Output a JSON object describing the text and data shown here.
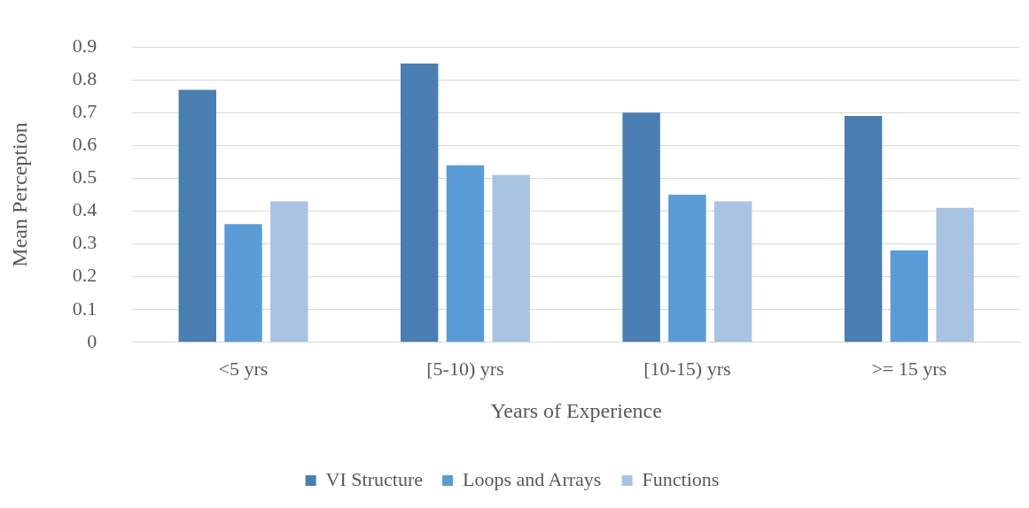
{
  "chart_data": {
    "type": "bar",
    "xlabel": "Years of Experience",
    "ylabel": "Mean Perception",
    "categories": [
      "<5 yrs",
      "[5-10) yrs",
      "[10-15) yrs",
      ">= 15 yrs"
    ],
    "series": [
      {
        "name": "VI Structure",
        "color": "#4a7eb0",
        "values": [
          0.77,
          0.85,
          0.7,
          0.69
        ]
      },
      {
        "name": "Loops and Arrays",
        "color": "#5b9bd5",
        "values": [
          0.36,
          0.54,
          0.45,
          0.28
        ]
      },
      {
        "name": "Functions",
        "color": "#a9c3e3",
        "values": [
          0.43,
          0.51,
          0.43,
          0.41
        ]
      }
    ],
    "ylim": [
      0,
      0.9
    ],
    "yticks": [
      0,
      0.1,
      0.2,
      0.3,
      0.4,
      0.5,
      0.6,
      0.7,
      0.8,
      0.9
    ],
    "grid": "y",
    "legend": "bottom"
  }
}
